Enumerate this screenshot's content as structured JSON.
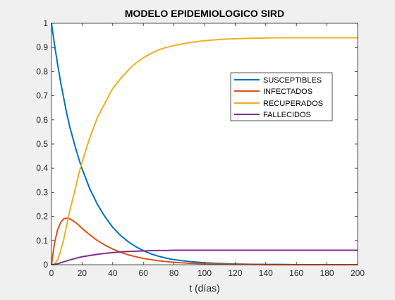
{
  "chart_data": {
    "type": "line",
    "title": "MODELO EPIDEMIOLOGICO SIRD",
    "xlabel": "t (días)",
    "ylabel": "",
    "xlim": [
      0,
      200
    ],
    "ylim": [
      0,
      1
    ],
    "xticks": [
      0,
      20,
      40,
      60,
      80,
      100,
      120,
      140,
      160,
      180,
      200
    ],
    "yticks": [
      0,
      0.1,
      0.2,
      0.3,
      0.4,
      0.5,
      0.6,
      0.7,
      0.8,
      0.9,
      1
    ],
    "xtick_labels": [
      "0",
      "20",
      "40",
      "60",
      "80",
      "100",
      "120",
      "140",
      "160",
      "180",
      "200"
    ],
    "ytick_labels": [
      "0",
      "0.1",
      "0.2",
      "0.3",
      "0.4",
      "0.5",
      "0.6",
      "0.7",
      "0.8",
      "0.9",
      "1"
    ],
    "grid": false,
    "legend_position": "top-right",
    "x": [
      0,
      2,
      4,
      6,
      8,
      10,
      12,
      15,
      18,
      20,
      25,
      30,
      35,
      40,
      45,
      50,
      55,
      60,
      65,
      70,
      75,
      80,
      90,
      100,
      110,
      120,
      130,
      140,
      150,
      160,
      170,
      180,
      190,
      200
    ],
    "series": [
      {
        "name": "SUSCEPTIBLES",
        "color": "#0072BD",
        "values": [
          1.0,
          0.91,
          0.83,
          0.755,
          0.69,
          0.625,
          0.57,
          0.5,
          0.435,
          0.397,
          0.315,
          0.25,
          0.198,
          0.155,
          0.122,
          0.096,
          0.075,
          0.058,
          0.045,
          0.035,
          0.027,
          0.021,
          0.013,
          0.008,
          0.005,
          0.003,
          0.002,
          0.001,
          0.001,
          0.0,
          0.0,
          0.0,
          0.0,
          0.0
        ]
      },
      {
        "name": "INFECTADOS",
        "color": "#D95319",
        "values": [
          0.0,
          0.09,
          0.145,
          0.175,
          0.19,
          0.193,
          0.19,
          0.178,
          0.163,
          0.15,
          0.124,
          0.1,
          0.081,
          0.065,
          0.052,
          0.041,
          0.033,
          0.026,
          0.021,
          0.016,
          0.013,
          0.01,
          0.006,
          0.004,
          0.002,
          0.001,
          0.001,
          0.0,
          0.0,
          0.0,
          0.0,
          0.0,
          0.0,
          0.0
        ]
      },
      {
        "name": "RECUPERADOS",
        "color": "#EDB120",
        "values": [
          0.0,
          0.003,
          0.02,
          0.058,
          0.105,
          0.165,
          0.225,
          0.3,
          0.38,
          0.425,
          0.525,
          0.61,
          0.67,
          0.73,
          0.77,
          0.805,
          0.835,
          0.857,
          0.875,
          0.89,
          0.9,
          0.908,
          0.92,
          0.928,
          0.933,
          0.936,
          0.938,
          0.939,
          0.94,
          0.94,
          0.94,
          0.94,
          0.94,
          0.94
        ]
      },
      {
        "name": "FALLECIDOS",
        "color": "#7E2F8E",
        "values": [
          0.0,
          0.001,
          0.004,
          0.008,
          0.012,
          0.016,
          0.02,
          0.025,
          0.03,
          0.033,
          0.038,
          0.043,
          0.047,
          0.05,
          0.053,
          0.055,
          0.056,
          0.057,
          0.058,
          0.059,
          0.059,
          0.06,
          0.06,
          0.06,
          0.06,
          0.06,
          0.06,
          0.06,
          0.06,
          0.06,
          0.06,
          0.06,
          0.06,
          0.06
        ]
      }
    ]
  }
}
